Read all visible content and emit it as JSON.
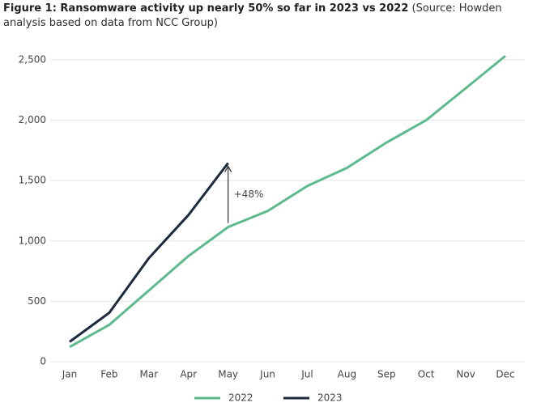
{
  "chart_data": {
    "type": "line",
    "title": "Figure 1: Ransomware activity up nearly 50% so far in 2023 vs 2022",
    "subtitle": "(Source: Howden analysis based on data from NCC Group)",
    "annotation": "+48%",
    "categories": [
      "Jan",
      "Feb",
      "Mar",
      "Apr",
      "May",
      "Jun",
      "Jul",
      "Aug",
      "Sep",
      "Oct",
      "Nov",
      "Dec"
    ],
    "series": [
      {
        "name": "2022",
        "color": "#5dba8c",
        "values": [
          122,
          305,
          590,
          875,
          1115,
          1248,
          1455,
          1605,
          1815,
          2000,
          2265,
          2532
        ]
      },
      {
        "name": "2023",
        "color": "#1b2a3d",
        "values": [
          165,
          405,
          858,
          1215,
          1645,
          null,
          null,
          null,
          null,
          null,
          null,
          null
        ]
      }
    ],
    "ylim": [
      0,
      2600
    ],
    "yticks": [
      0,
      500,
      {
        "value": 1000,
        "label": "1,000"
      },
      {
        "value": 1500,
        "label": "1,500"
      },
      {
        "value": 2000,
        "label": "2,000"
      },
      {
        "value": 2500,
        "label": "2,500"
      }
    ],
    "grid": true,
    "legend": "bottom"
  }
}
